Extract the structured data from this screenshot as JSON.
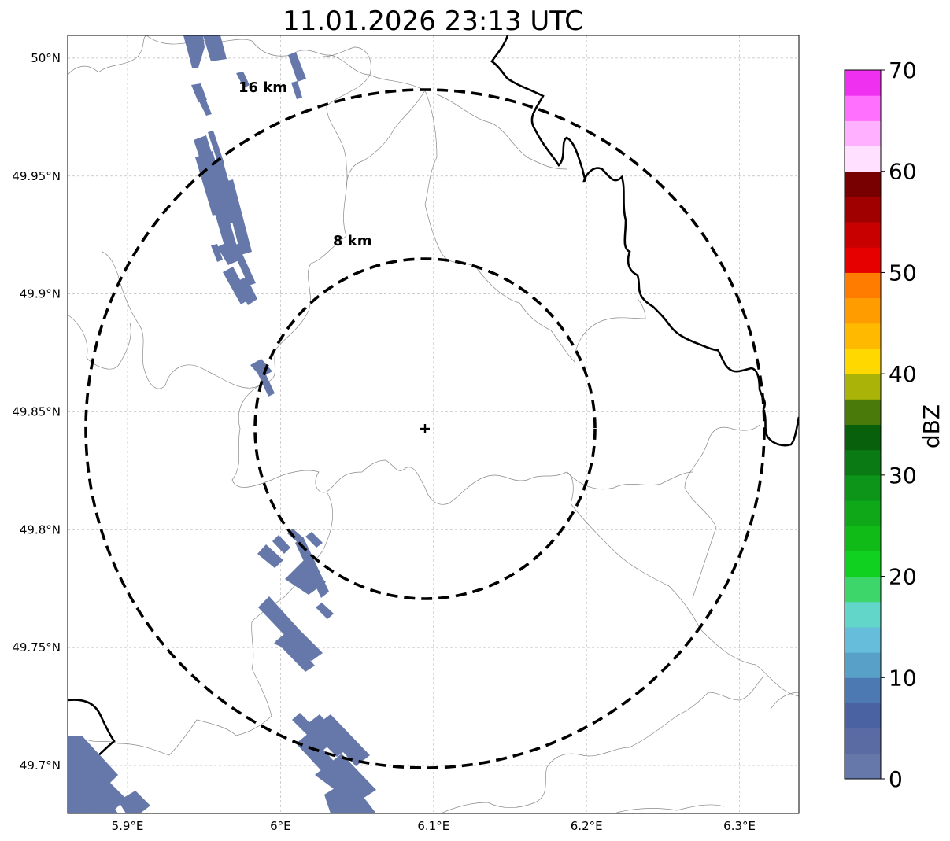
{
  "title": "11.01.2026 23:13 UTC",
  "map": {
    "lon_range": [
      5.86,
      6.34
    ],
    "lat_range": [
      49.68,
      50.01
    ],
    "lon_ticks": [
      {
        "value": 5.9,
        "label": "5.9°E"
      },
      {
        "value": 6.0,
        "label": "6°E"
      },
      {
        "value": 6.1,
        "label": "6.1°E"
      },
      {
        "value": 6.2,
        "label": "6.2°E"
      },
      {
        "value": 6.3,
        "label": "6.3°E"
      }
    ],
    "lat_ticks": [
      {
        "value": 50.0,
        "label": "50°N"
      },
      {
        "value": 49.95,
        "label": "49.95°N"
      },
      {
        "value": 49.9,
        "label": "49.9°N"
      },
      {
        "value": 49.85,
        "label": "49.85°N"
      },
      {
        "value": 49.8,
        "label": "49.8°N"
      },
      {
        "value": 49.75,
        "label": "49.75°N"
      },
      {
        "value": 49.7,
        "label": "49.7°N"
      }
    ],
    "gridlines": true,
    "radar_site": {
      "lon": 6.0935,
      "lat": 49.8435
    },
    "range_rings": [
      {
        "radius_km": 8,
        "label": "8 km"
      },
      {
        "radius_km": 16,
        "label": "16 km"
      }
    ],
    "echo_color": "#6677aa"
  },
  "colorbar": {
    "label": "dBZ",
    "min": 0,
    "max": 70,
    "ticks": [
      {
        "value": 0,
        "label": "0"
      },
      {
        "value": 10,
        "label": "10"
      },
      {
        "value": 20,
        "label": "20"
      },
      {
        "value": 30,
        "label": "30"
      },
      {
        "value": 40,
        "label": "40"
      },
      {
        "value": 50,
        "label": "50"
      },
      {
        "value": 60,
        "label": "60"
      },
      {
        "value": 70,
        "label": "70"
      }
    ],
    "colors": [
      "#6677aa",
      "#5a6ba4",
      "#4a62a2",
      "#4d79b2",
      "#58a0c8",
      "#66bddb",
      "#62d6c8",
      "#3cd66a",
      "#10d020",
      "#10bb18",
      "#0ea818",
      "#0c9518",
      "#0a7a14",
      "#08600c",
      "#4a7a0a",
      "#aab408",
      "#ffd800",
      "#ffba00",
      "#ff9c00",
      "#ff7c00",
      "#e60000",
      "#c80000",
      "#a00000",
      "#780000",
      "#ffe0ff",
      "#ffb0ff",
      "#ff70ff",
      "#f030f0"
    ]
  }
}
